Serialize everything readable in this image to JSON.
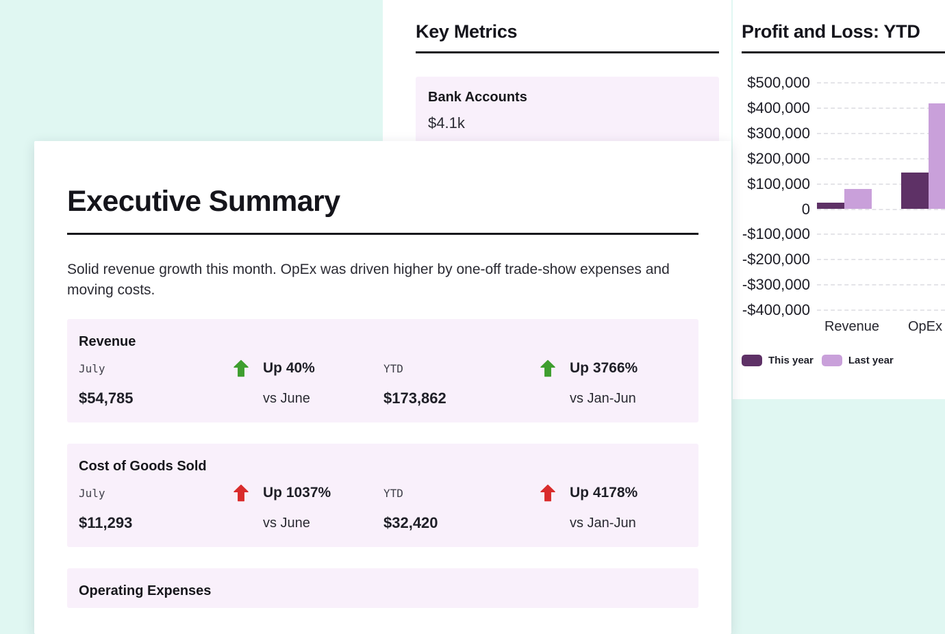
{
  "page": {
    "background_color": "#e0f7f2",
    "panel_color": "#ffffff",
    "card_color": "#f9f0fb"
  },
  "key_metrics": {
    "title": "Key Metrics",
    "cards": [
      {
        "label": "Bank Accounts",
        "value": "$4.1k"
      }
    ]
  },
  "chart_data": {
    "type": "bar",
    "title": "Profit and Loss: YTD",
    "categories": [
      "Revenue",
      "OpEx"
    ],
    "series": [
      {
        "name": "This year",
        "color": "#5e3166",
        "values": [
          25000,
          145000
        ]
      },
      {
        "name": "Last year",
        "color": "#c9a0da",
        "values": [
          80000,
          420000
        ]
      }
    ],
    "yticks": [
      {
        "label": "$500,000",
        "value": 500000
      },
      {
        "label": "$400,000",
        "value": 400000
      },
      {
        "label": "$300,000",
        "value": 300000
      },
      {
        "label": "$200,000",
        "value": 200000
      },
      {
        "label": "$100,000",
        "value": 100000
      },
      {
        "label": "0",
        "value": 0
      },
      {
        "label": "-$100,000",
        "value": -100000
      },
      {
        "label": "-$200,000",
        "value": -200000
      },
      {
        "label": "-$300,000",
        "value": -300000
      },
      {
        "label": "-$400,000",
        "value": -400000
      }
    ],
    "ylim": [
      -400000,
      500000
    ],
    "grid": "horizontal-dashed",
    "legend_position": "bottom-left"
  },
  "exec_summary": {
    "title": "Executive Summary",
    "paragraph": "Solid revenue growth this month. OpEx was driven higher by one-off trade-show expenses and moving costs.",
    "trend_colors": {
      "green": "#3f9e2f",
      "red": "#d92c2c"
    },
    "metrics": [
      {
        "name": "Revenue",
        "period": {
          "label": "July",
          "value": "$54,785"
        },
        "mom": {
          "direction": "up",
          "color": "green",
          "text": "Up 40%",
          "sub": "vs June"
        },
        "ytd": {
          "label": "YTD",
          "value": "$173,862"
        },
        "yoy": {
          "direction": "up",
          "color": "green",
          "text": "Up 3766%",
          "sub": "vs Jan-Jun"
        }
      },
      {
        "name": "Cost of Goods Sold",
        "period": {
          "label": "July",
          "value": "$11,293"
        },
        "mom": {
          "direction": "up",
          "color": "red",
          "text": "Up 1037%",
          "sub": "vs June"
        },
        "ytd": {
          "label": "YTD",
          "value": "$32,420"
        },
        "yoy": {
          "direction": "up",
          "color": "red",
          "text": "Up 4178%",
          "sub": "vs Jan-Jun"
        }
      },
      {
        "name": "Operating Expenses"
      }
    ]
  }
}
